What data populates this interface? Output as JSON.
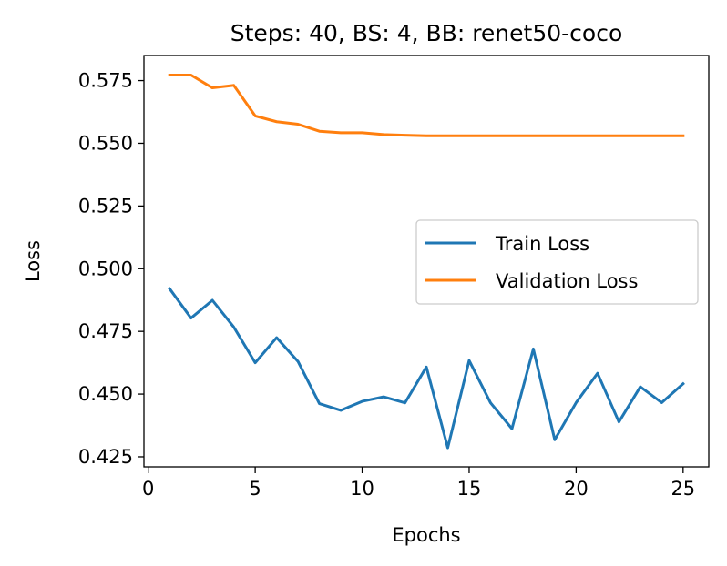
{
  "chart_data": {
    "type": "line",
    "title": "Steps: 40, BS: 4, BB: renet50-coco",
    "xlabel": "Epochs",
    "ylabel": "Loss",
    "xlim": [
      -0.2,
      26.2
    ],
    "ylim": [
      0.421,
      0.585
    ],
    "xticks": [
      0,
      5,
      10,
      15,
      20,
      25
    ],
    "yticks": [
      0.425,
      0.45,
      0.475,
      0.5,
      0.525,
      0.55,
      0.575
    ],
    "ytick_labels": [
      "0.425",
      "0.450",
      "0.475",
      "0.500",
      "0.525",
      "0.550",
      "0.575"
    ],
    "grid": false,
    "legend_position": "center-right",
    "x": [
      1,
      2,
      3,
      4,
      5,
      6,
      7,
      8,
      9,
      10,
      11,
      12,
      13,
      14,
      15,
      16,
      17,
      18,
      19,
      20,
      21,
      22,
      23,
      24,
      25
    ],
    "series": [
      {
        "name": "Train Loss",
        "color": "#1f77b4",
        "values": [
          0.492,
          0.4803,
          0.4874,
          0.4767,
          0.4625,
          0.4725,
          0.463,
          0.4462,
          0.4435,
          0.4471,
          0.4489,
          0.4465,
          0.4608,
          0.4286,
          0.4634,
          0.4465,
          0.4362,
          0.468,
          0.4318,
          0.4466,
          0.4583,
          0.4389,
          0.4529,
          0.4466,
          0.4541
        ]
      },
      {
        "name": "Validation Loss",
        "color": "#ff7f0e",
        "values": [
          0.5772,
          0.5772,
          0.5721,
          0.5731,
          0.5609,
          0.5586,
          0.5576,
          0.5548,
          0.5542,
          0.5542,
          0.5535,
          0.5532,
          0.553,
          0.553,
          0.553,
          0.553,
          0.553,
          0.553,
          0.553,
          0.553,
          0.553,
          0.553,
          0.553,
          0.553,
          0.553
        ]
      }
    ]
  }
}
